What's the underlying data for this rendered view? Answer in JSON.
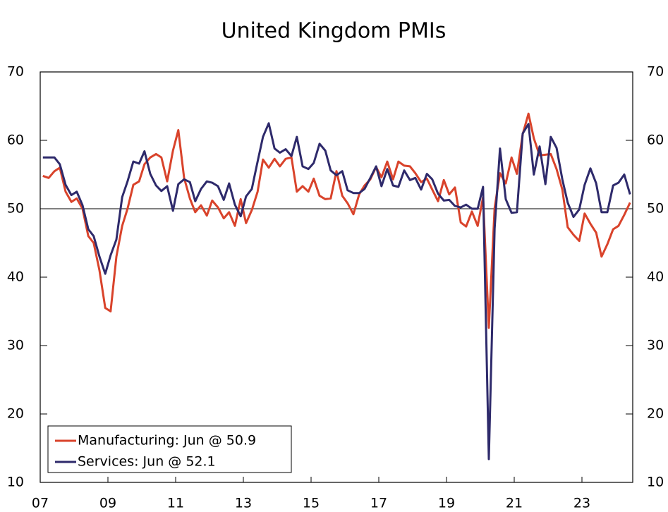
{
  "chart_data": {
    "type": "line",
    "title": "United Kingdom PMIs",
    "x": [
      2007.08,
      2007.25,
      2007.42,
      2007.58,
      2007.75,
      2007.92,
      2008.08,
      2008.25,
      2008.42,
      2008.58,
      2008.75,
      2008.92,
      2009.08,
      2009.25,
      2009.42,
      2009.58,
      2009.75,
      2009.92,
      2010.08,
      2010.25,
      2010.42,
      2010.58,
      2010.75,
      2010.92,
      2011.08,
      2011.25,
      2011.42,
      2011.58,
      2011.75,
      2011.92,
      2012.08,
      2012.25,
      2012.42,
      2012.58,
      2012.75,
      2012.92,
      2013.08,
      2013.25,
      2013.42,
      2013.58,
      2013.75,
      2013.92,
      2014.08,
      2014.25,
      2014.42,
      2014.58,
      2014.75,
      2014.92,
      2015.08,
      2015.25,
      2015.42,
      2015.58,
      2015.75,
      2015.92,
      2016.08,
      2016.25,
      2016.42,
      2016.58,
      2016.75,
      2016.92,
      2017.08,
      2017.25,
      2017.42,
      2017.58,
      2017.75,
      2017.92,
      2018.08,
      2018.25,
      2018.42,
      2018.58,
      2018.75,
      2018.92,
      2019.08,
      2019.25,
      2019.42,
      2019.58,
      2019.75,
      2019.92,
      2020.08,
      2020.25,
      2020.42,
      2020.58,
      2020.75,
      2020.92,
      2021.08,
      2021.25,
      2021.42,
      2021.58,
      2021.75,
      2021.92,
      2022.08,
      2022.25,
      2022.42,
      2022.58,
      2022.75,
      2022.92,
      2023.08,
      2023.25,
      2023.42,
      2023.58,
      2023.75,
      2023.92,
      2024.08,
      2024.25,
      2024.42
    ],
    "series": [
      {
        "name": "Manufacturing: Jun @ 50.9",
        "color": "#d9432b",
        "values": [
          54.8,
          54.5,
          55.5,
          56,
          52.5,
          51,
          51.5,
          50,
          46,
          45,
          41,
          35.5,
          35,
          43,
          47.5,
          50,
          53.5,
          54,
          56.5,
          57.5,
          58,
          57.5,
          54,
          58.5,
          61.5,
          54.5,
          51.5,
          49.5,
          50.5,
          49,
          51.2,
          50.2,
          48.6,
          49.5,
          47.5,
          51.4,
          47.9,
          49.8,
          52.5,
          57.2,
          56,
          57.3,
          56.2,
          57.3,
          57.5,
          52.5,
          53.3,
          52.5,
          54.4,
          51.9,
          51.4,
          51.5,
          55.5,
          51.9,
          50.8,
          49.2,
          52.1,
          53.4,
          54.3,
          56.1,
          54.6,
          56.9,
          54.3,
          56.9,
          56.3,
          56.2,
          55.2,
          53.9,
          54.4,
          52.8,
          51.1,
          54.2,
          52.1,
          53.1,
          48,
          47.4,
          49.6,
          47.5,
          51.7,
          32.6,
          50.1,
          55.2,
          53.7,
          57.5,
          55.1,
          60.9,
          63.9,
          60.3,
          57.8,
          57.9,
          58,
          55.8,
          52.8,
          47.3,
          46.2,
          45.3,
          49.3,
          47.8,
          46.5,
          43,
          44.8,
          47,
          47.5,
          49.1,
          50.9
        ]
      },
      {
        "name": "Services: Jun @ 52.1",
        "color": "#2e2a6b",
        "values": [
          57.5,
          57.5,
          57.5,
          56.5,
          53.5,
          52,
          52.5,
          50.5,
          47,
          46,
          43,
          40.5,
          43.2,
          45.5,
          51.7,
          54,
          56.9,
          56.6,
          58.4,
          55.1,
          53.4,
          52.6,
          53.3,
          49.7,
          53.6,
          54.3,
          53.9,
          51.1,
          52.9,
          54,
          53.8,
          53.3,
          51.3,
          53.7,
          50.6,
          48.9,
          51.8,
          52.9,
          56.9,
          60.5,
          62.5,
          58.8,
          58.2,
          58.7,
          57.7,
          60.5,
          56.2,
          55.8,
          56.7,
          59.5,
          58.5,
          55.6,
          54.9,
          55.5,
          52.7,
          52.3,
          52.3,
          52.9,
          54.5,
          56.2,
          53.3,
          55.8,
          53.4,
          53.2,
          55.6,
          54.2,
          54.5,
          52.8,
          55.1,
          54.3,
          52.2,
          51.2,
          51.3,
          50.4,
          50.2,
          50.6,
          50,
          50,
          53.2,
          13.4,
          47.1,
          58.8,
          51.4,
          49.4,
          49.5,
          61,
          62.4,
          55,
          59.1,
          53.6,
          60.5,
          58.9,
          54.3,
          50.9,
          48.8,
          49.9,
          53.5,
          55.9,
          53.7,
          49.5,
          49.5,
          53.4,
          53.8,
          55,
          52.1
        ]
      }
    ],
    "xlim": [
      2007,
      2024.5
    ],
    "xticks": [
      {
        "value": 2007,
        "label": "07"
      },
      {
        "value": 2009,
        "label": "09"
      },
      {
        "value": 2011,
        "label": "11"
      },
      {
        "value": 2013,
        "label": "13"
      },
      {
        "value": 2015,
        "label": "15"
      },
      {
        "value": 2017,
        "label": "17"
      },
      {
        "value": 2019,
        "label": "19"
      },
      {
        "value": 2021,
        "label": "21"
      },
      {
        "value": 2023,
        "label": "23"
      }
    ],
    "ylim": [
      10,
      70
    ],
    "yticks": [
      10,
      20,
      30,
      40,
      50,
      60,
      70
    ],
    "reference_line": 50,
    "legend": "lower left"
  }
}
